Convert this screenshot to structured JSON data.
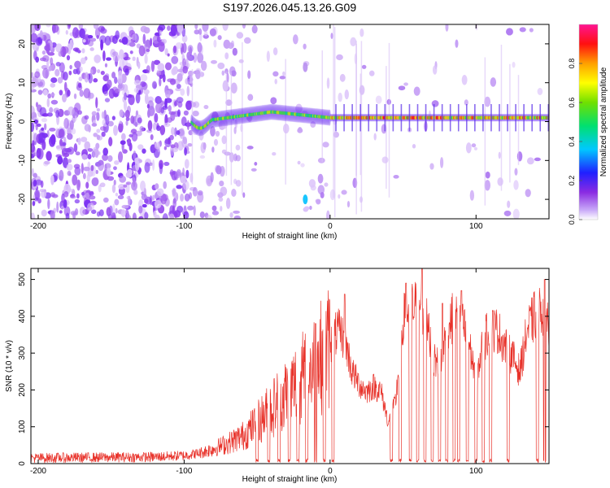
{
  "figure_title": "S197.2026.045.13.26.G09",
  "colors": {
    "signal": "#e8322a",
    "cloud": "#7a2ff2",
    "axis": "#000000",
    "background": "#ffffff"
  },
  "chart_data": [
    {
      "type": "heatmap",
      "name": "spectrogram",
      "title": "",
      "xlabel": "Height of straight line (km)",
      "ylabel": "Frequency (Hz)",
      "xlim": [
        -205,
        150
      ],
      "ylim": [
        -25,
        25
      ],
      "xticks": [
        -200,
        -100,
        0,
        100
      ],
      "xtick_labels": [
        "-200",
        "-100",
        "0",
        "100"
      ],
      "yticks": [
        20,
        10,
        0,
        -10,
        -20
      ],
      "ytick_labels": [
        "20",
        "10",
        "0",
        "-10",
        "-20"
      ],
      "colorbar": {
        "label": "Normalized spectral amplitude",
        "range": [
          0,
          1
        ],
        "ticks": [
          0.0,
          0.2,
          0.4,
          0.6,
          0.8
        ],
        "tick_labels": [
          "0.0",
          "0.2",
          "0.4",
          "0.6",
          "0.8"
        ],
        "colormap": "rainbow (magenta-blue-cyan-green-yellow-orange-red-pink)"
      },
      "features": [
        {
          "label": "broadband noise",
          "x_range": [
            -205,
            -95
          ],
          "freq_range": [
            -25,
            25
          ],
          "amplitude": 0.1
        },
        {
          "label": "carrier tone",
          "x_range": [
            -95,
            150
          ],
          "freq_hz": 1.0,
          "amplitude_range": [
            0.3,
            0.95
          ]
        },
        {
          "label": "isolated spot",
          "x": -17,
          "freq_hz": -20,
          "amplitude": 0.4
        },
        {
          "label": "isolated spot",
          "x": -17,
          "freq_hz": 14,
          "amplitude": 0.15
        }
      ]
    },
    {
      "type": "line",
      "name": "snr",
      "title": "",
      "xlabel": "Height of straight line (km)",
      "ylabel": "SNR (10 * v/v)",
      "xlim": [
        -205,
        150
      ],
      "ylim": [
        0,
        530
      ],
      "xticks": [
        -200,
        -100,
        0,
        100
      ],
      "xtick_labels": [
        "-200",
        "-100",
        "0",
        "100"
      ],
      "yticks": [
        0,
        100,
        200,
        300,
        400,
        500
      ],
      "ytick_labels": [
        "0",
        "100",
        "200",
        "300",
        "400",
        "500"
      ],
      "series": [
        {
          "name": "SNR",
          "color": "#e8322a",
          "x": [
            -205,
            -180,
            -150,
            -120,
            -100,
            -90,
            -80,
            -70,
            -60,
            -50,
            -40,
            -30,
            -20,
            -10,
            0,
            5,
            10,
            15,
            20,
            25,
            30,
            35,
            40,
            45,
            50,
            55,
            60,
            65,
            70,
            75,
            80,
            85,
            90,
            95,
            100,
            105,
            110,
            115,
            120,
            125,
            130,
            135,
            140,
            145,
            150
          ],
          "y": [
            15,
            16,
            17,
            18,
            22,
            28,
            40,
            55,
            75,
            110,
            150,
            190,
            230,
            270,
            320,
            360,
            340,
            250,
            215,
            195,
            210,
            195,
            110,
            170,
            390,
            420,
            430,
            410,
            300,
            260,
            370,
            400,
            390,
            330,
            230,
            330,
            370,
            360,
            320,
            290,
            250,
            360,
            400,
            420,
            380
          ],
          "peaks": [
            {
              "x": -10,
              "y": 380
            },
            {
              "x": 10,
              "y": 460
            },
            {
              "x": 52,
              "y": 490
            },
            {
              "x": 63,
              "y": 530
            },
            {
              "x": 77,
              "y": 435
            },
            {
              "x": 90,
              "y": 470
            },
            {
              "x": 147,
              "y": 500
            }
          ],
          "dropouts_x": [
            -50,
            -42,
            -35,
            -28,
            -22,
            -16,
            -10,
            -4,
            2,
            42,
            48,
            55,
            60,
            65,
            70,
            75,
            80,
            85,
            88,
            94,
            100,
            105,
            110,
            122,
            142,
            147
          ]
        }
      ]
    }
  ]
}
